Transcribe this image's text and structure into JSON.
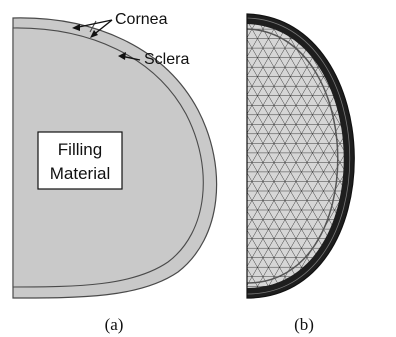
{
  "panel_a": {
    "labels": {
      "cornea": "Cornea",
      "sclera": "Sclera",
      "filling_line1": "Filling",
      "filling_line2": "Material"
    },
    "caption": "(a)"
  },
  "panel_b": {
    "caption": "(b)"
  },
  "colors": {
    "shell": "#c9c9c9",
    "shell_stroke": "#4a4a4a",
    "mesh_light": "#d6d6d6",
    "mesh_line": "#3a3a3a",
    "mesh_dark_band": "#1e1e1e"
  }
}
